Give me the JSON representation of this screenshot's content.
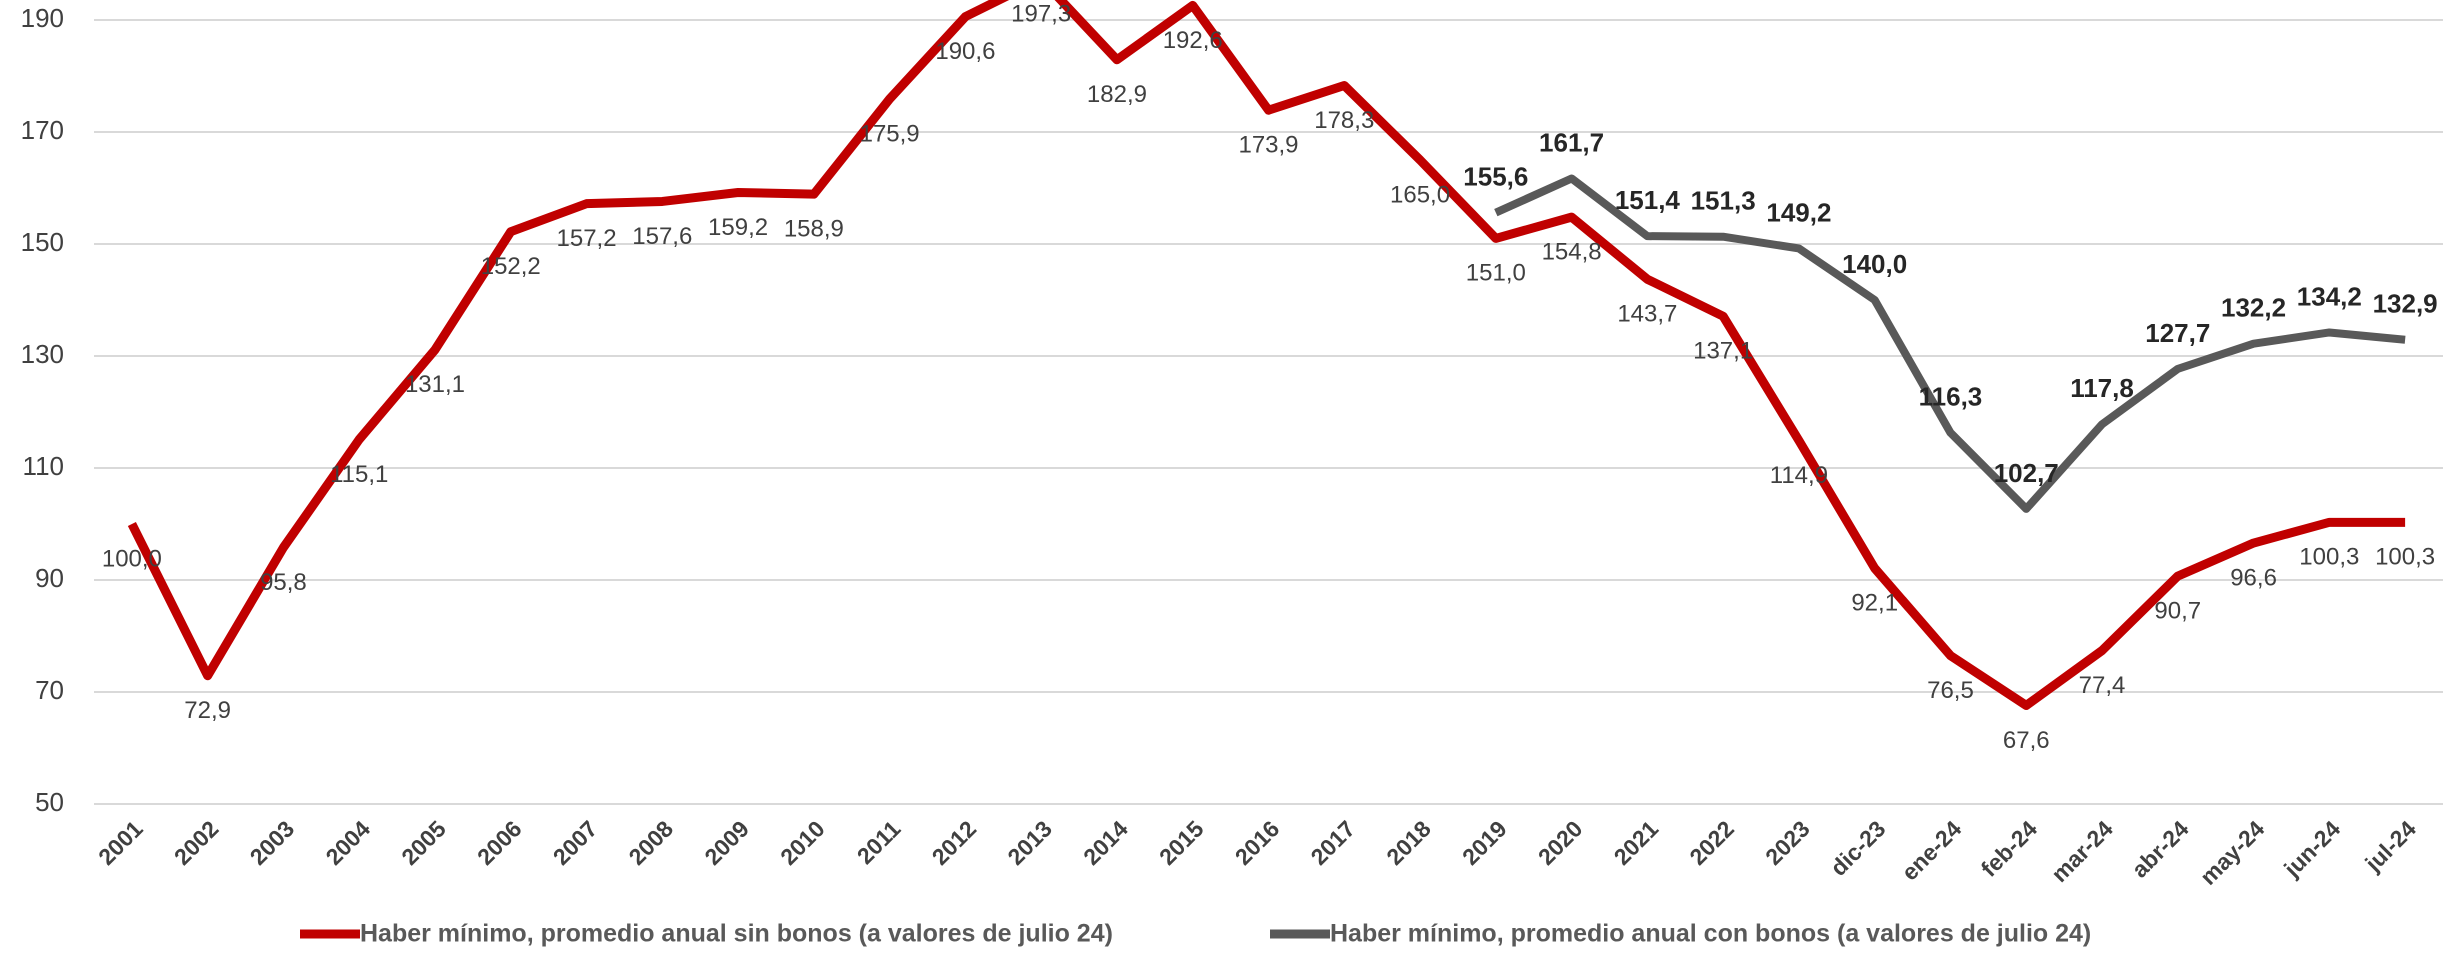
{
  "chart_data": {
    "type": "line",
    "categories": [
      "2001",
      "2002",
      "2003",
      "2004",
      "2005",
      "2006",
      "2007",
      "2008",
      "2009",
      "2010",
      "2011",
      "2012",
      "2013",
      "2014",
      "2015",
      "2016",
      "2017",
      "2018",
      "2019",
      "2020",
      "2021",
      "2022",
      "2023",
      "dic-23",
      "ene-24",
      "feb-24",
      "mar-24",
      "abr-24",
      "may-24",
      "jun-24",
      "jul-24"
    ],
    "series": [
      {
        "name": "Haber mínimo, promedio anual sin bonos (a valores de julio 24)",
        "color": "#c00000",
        "values": [
          100.0,
          72.9,
          95.8,
          115.1,
          131.1,
          152.2,
          157.2,
          157.6,
          159.2,
          158.9,
          175.9,
          190.6,
          197.3,
          182.9,
          192.6,
          173.9,
          178.3,
          165.0,
          151.0,
          154.8,
          143.7,
          137.1,
          114.9,
          92.1,
          76.5,
          67.6,
          77.4,
          90.7,
          96.6,
          100.3,
          100.3
        ],
        "value_labels": [
          "100,0",
          "72,9",
          "95,8",
          "115,1",
          "131,1",
          "152,2",
          "157,2",
          "157,6",
          "159,2",
          "158,9",
          "175,9",
          "190,6",
          "197,3",
          "182,9",
          "192,6",
          "173,9",
          "178,3",
          "165,0",
          "151,0",
          "154,8",
          "143,7",
          "137,1",
          "114,9",
          "92,1",
          "76,5",
          "67,6",
          "77,4",
          "90,7",
          "96,6",
          "100,3",
          "100,3"
        ]
      },
      {
        "name": "Haber mínimo, promedio anual con bonos (a valores de julio 24)",
        "color": "#595959",
        "values": [
          null,
          null,
          null,
          null,
          null,
          null,
          null,
          null,
          null,
          null,
          null,
          null,
          null,
          null,
          null,
          null,
          null,
          null,
          155.6,
          161.7,
          151.4,
          151.3,
          149.2,
          140.0,
          116.3,
          102.7,
          117.8,
          127.7,
          132.2,
          134.2,
          132.9
        ],
        "value_labels": [
          null,
          null,
          null,
          null,
          null,
          null,
          null,
          null,
          null,
          null,
          null,
          null,
          null,
          null,
          null,
          null,
          null,
          null,
          "155,6",
          "161,7",
          "151,4",
          "151,3",
          "149,2",
          "140,0",
          "116,3",
          "102,7",
          "117,8",
          "127,7",
          "132,2",
          "134,2",
          "132,9"
        ]
      }
    ],
    "ylim": [
      50,
      190
    ],
    "yticks": [
      50,
      70,
      90,
      110,
      130,
      150,
      170,
      190
    ],
    "grid": true,
    "legend": "bottom"
  }
}
